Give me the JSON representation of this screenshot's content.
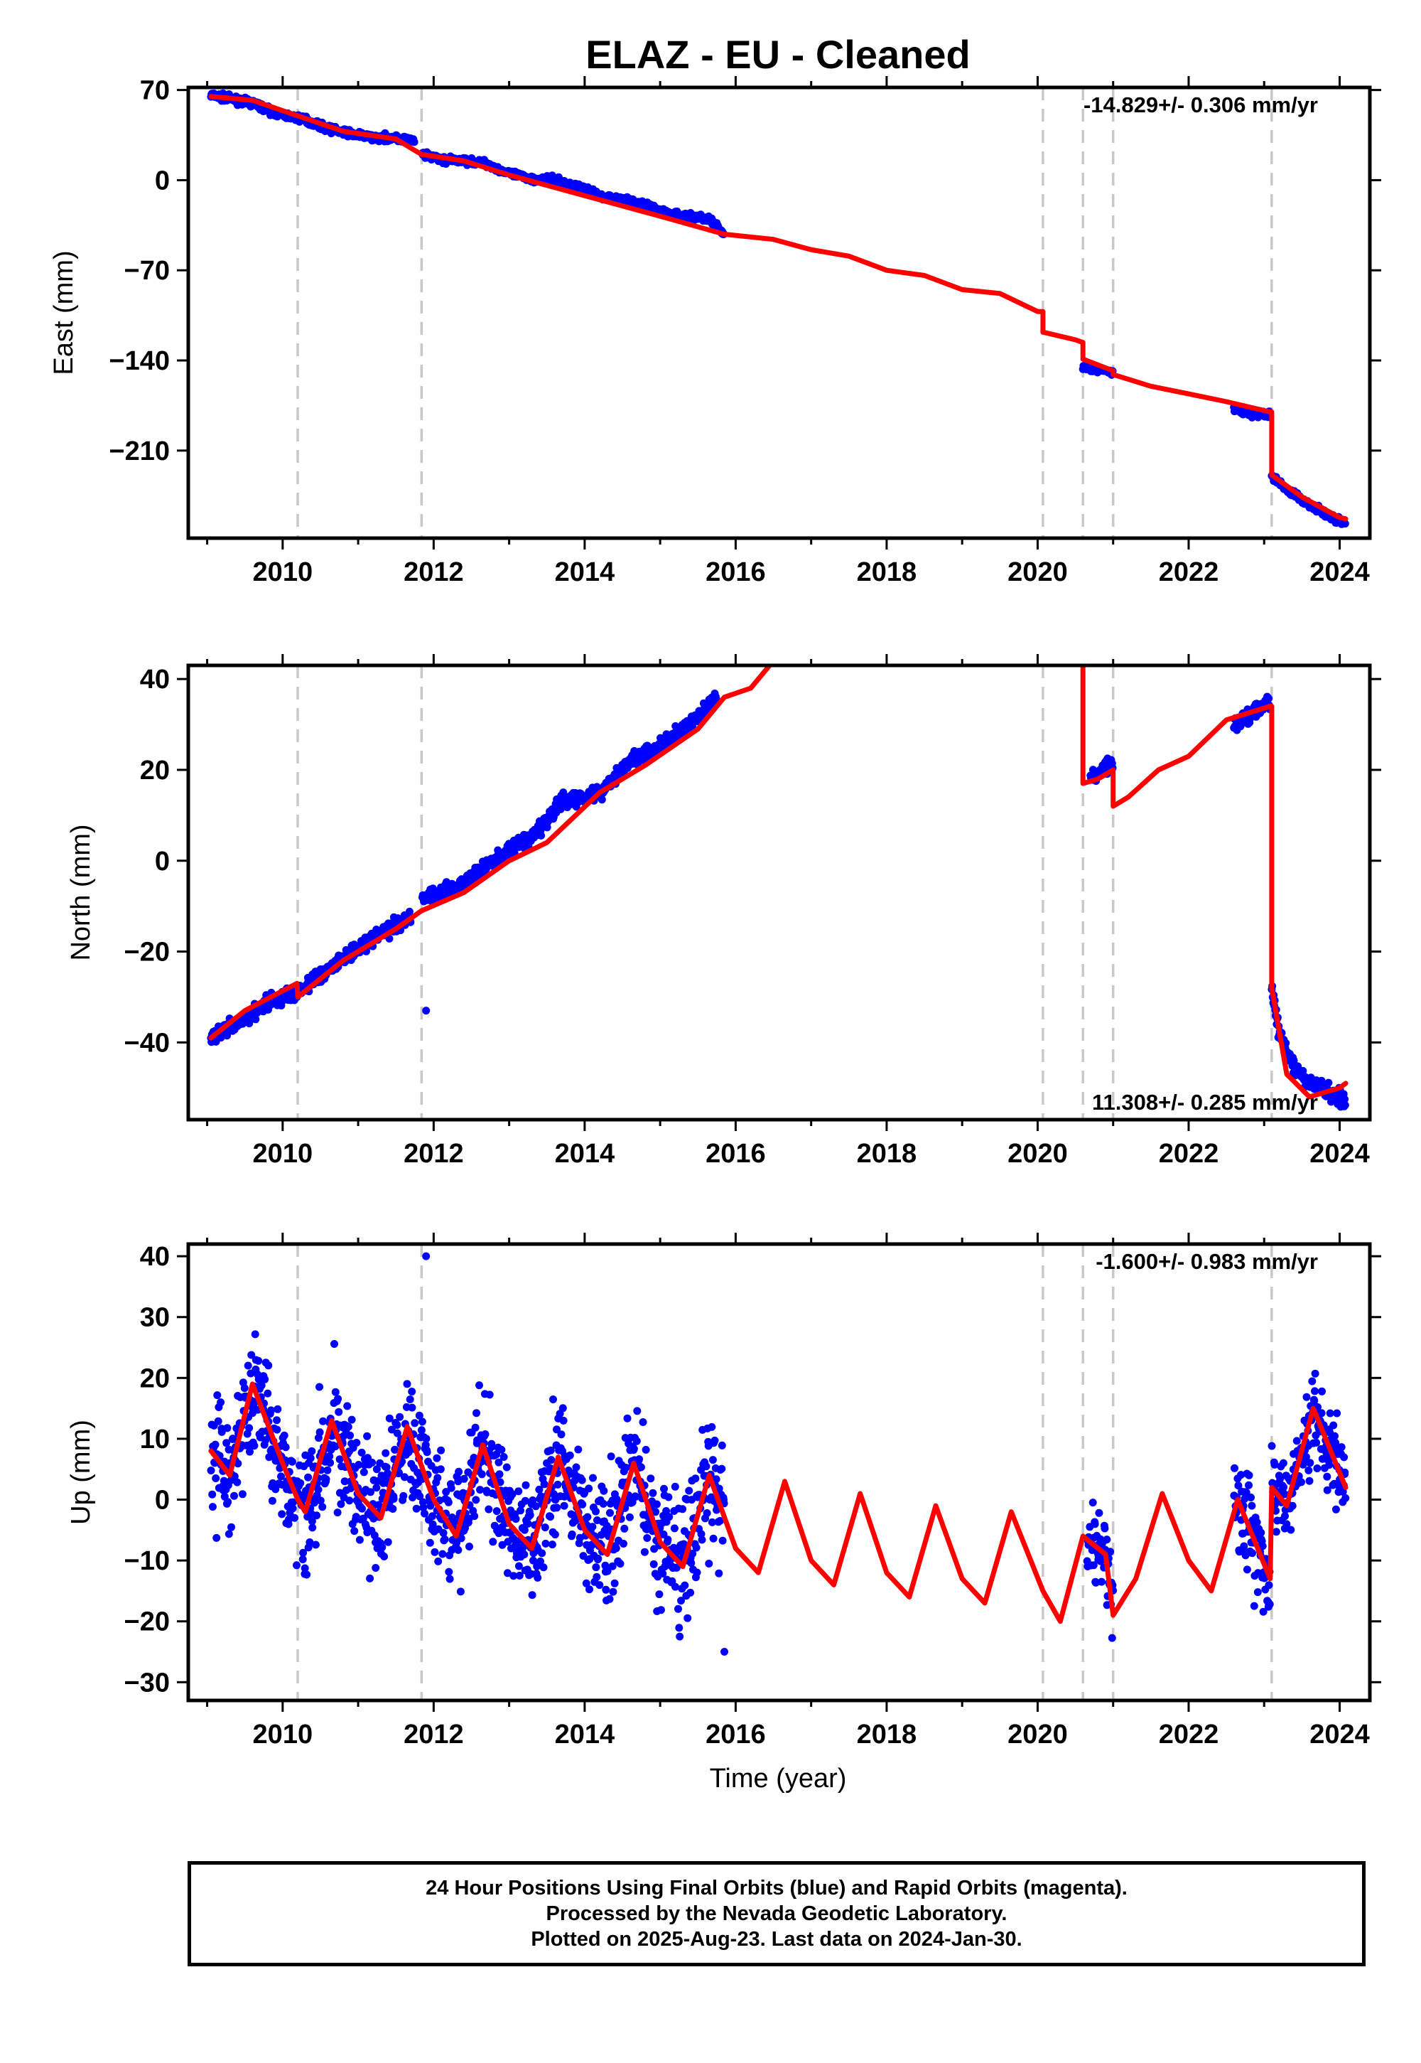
{
  "title": "ELAZ  - EU - Cleaned",
  "colors": {
    "data": "#0000ff",
    "model": "#ff0000",
    "step": "#c8c8c8"
  },
  "chart_data": [
    {
      "type": "scatter",
      "ylabel": "East (mm)",
      "xlabel": "",
      "rate": "-14.829+/- 0.306 mm/yr",
      "xlim": [
        2008.75,
        2024.4
      ],
      "ylim": [
        -278,
        72
      ],
      "xticks": [
        "2010",
        "2012",
        "2014",
        "2016",
        "2018",
        "2020",
        "2022",
        "2024"
      ],
      "yticks": [
        "70",
        "0",
        "-70",
        "-140",
        "-210"
      ],
      "step_epochs": [
        2010.2,
        2011.84,
        2020.07,
        2020.6,
        2021.0,
        2023.1
      ],
      "data_segments": [
        {
          "x": [
            2009.05,
            2009.3,
            2009.6,
            2009.9,
            2010.3,
            2010.6,
            2010.9,
            2011.2,
            2011.5,
            2011.75
          ],
          "y": [
            66,
            63,
            60,
            52,
            47,
            40,
            36,
            33,
            33,
            30
          ]
        },
        {
          "x": [
            2011.85,
            2012.1,
            2012.4,
            2012.7,
            2013.0,
            2013.3,
            2013.6,
            2013.9,
            2014.2,
            2014.5,
            2014.8,
            2015.1,
            2015.4,
            2015.65,
            2015.85
          ],
          "y": [
            20,
            16,
            15,
            13,
            5,
            1,
            0,
            -5,
            -12,
            -15,
            -19,
            -26,
            -28,
            -30,
            -42
          ]
        },
        {
          "x": [
            2020.6,
            2020.8,
            2021.0
          ],
          "y": [
            -145,
            -147,
            -150
          ]
        },
        {
          "x": [
            2022.6,
            2022.85,
            2023.08
          ],
          "y": [
            -178,
            -182,
            -182
          ]
        },
        {
          "x": [
            2023.1,
            2023.3,
            2023.6,
            2023.9,
            2024.0,
            2024.08
          ],
          "y": [
            -230,
            -240,
            -252,
            -262,
            -264,
            -267
          ]
        }
      ],
      "model": {
        "x": [
          2009.05,
          2009.6,
          2010.2,
          2010.8,
          2011.5,
          2011.84,
          2012.4,
          2013.0,
          2014.0,
          2015.0,
          2015.85,
          2016.5,
          2017.0,
          2017.5,
          2018.0,
          2018.5,
          2019.0,
          2019.5,
          2020.0,
          2020.07,
          2020.07,
          2020.5,
          2020.6,
          2020.6,
          2021.0,
          2021.0,
          2021.5,
          2022.0,
          2022.5,
          2023.08,
          2023.1,
          2023.1,
          2023.5,
          2024.0,
          2024.08
        ],
        "y": [
          65,
          62,
          50,
          38,
          32,
          20,
          15,
          4,
          -12,
          -28,
          -42,
          -46,
          -54,
          -59,
          -70,
          -74,
          -85,
          -88,
          -102,
          -102,
          -118,
          -124,
          -126,
          -139,
          -148,
          -151,
          -160,
          -166,
          -172,
          -180,
          -180,
          -229,
          -246,
          -262,
          -263
        ]
      }
    },
    {
      "type": "scatter",
      "ylabel": "North (mm)",
      "xlabel": "",
      "rate": "11.308+/- 0.285 mm/yr",
      "xlim": [
        2008.75,
        2024.4
      ],
      "ylim": [
        -57,
        43
      ],
      "xticks": [
        "2010",
        "2012",
        "2014",
        "2016",
        "2018",
        "2020",
        "2022",
        "2024"
      ],
      "yticks": [
        "40",
        "20",
        "0",
        "-20",
        "-40"
      ],
      "step_epochs": [
        2010.2,
        2011.84,
        2020.07,
        2020.6,
        2021.0,
        2023.1
      ],
      "data_segments": [
        {
          "x": [
            2009.05,
            2009.4,
            2009.8,
            2010.2,
            2010.6,
            2011.0,
            2011.4,
            2011.7
          ],
          "y": [
            -39,
            -36,
            -31,
            -29,
            -24,
            -19,
            -15,
            -12
          ]
        },
        {
          "x": [
            2011.85,
            2012.3,
            2012.8,
            2013.3,
            2013.7,
            2014.2,
            2014.6,
            2015.0,
            2015.4,
            2015.75
          ],
          "y": [
            -8,
            -6,
            0,
            5,
            13,
            15,
            22,
            25,
            30,
            36
          ]
        },
        {
          "x": [
            2020.7,
            2020.85,
            2021.0
          ],
          "y": [
            18,
            20,
            22
          ]
        },
        {
          "x": [
            2022.6,
            2022.8,
            2023.08
          ],
          "y": [
            30,
            32,
            35
          ]
        },
        {
          "x": [
            2023.1,
            2023.2,
            2023.35,
            2023.5,
            2024.0,
            2024.08
          ],
          "y": [
            -28,
            -38,
            -44,
            -48,
            -52,
            -53
          ]
        }
      ],
      "outliers": {
        "x": [
          2011.9
        ],
        "y": [
          -33
        ]
      },
      "model": {
        "x": [
          2009.05,
          2009.5,
          2010.19,
          2010.2,
          2010.8,
          2011.5,
          2011.84,
          2012.4,
          2013.0,
          2013.5,
          2014.2,
          2014.8,
          2015.5,
          2015.85,
          2016.2,
          2016.5,
          2020.6,
          2020.6,
          2020.8,
          2021.0,
          2021.0,
          2021.2,
          2021.6,
          2022.0,
          2022.5,
          2023.08,
          2023.1,
          2023.1,
          2023.3,
          2023.6,
          2024.0,
          2024.08
        ],
        "y": [
          -39,
          -33,
          -27,
          -30,
          -22,
          -15,
          -11,
          -7,
          0,
          4,
          15,
          21,
          29,
          36,
          38,
          44,
          44,
          17,
          18,
          20,
          12,
          14,
          20,
          23,
          31,
          34,
          34,
          -28,
          -47,
          -52,
          -50,
          -49
        ]
      }
    },
    {
      "type": "scatter",
      "ylabel": "Up (mm)",
      "xlabel": "Time (year)",
      "rate": "-1.600+/- 0.983 mm/yr",
      "xlim": [
        2008.75,
        2024.4
      ],
      "ylim": [
        -33,
        42
      ],
      "xticks": [
        "2010",
        "2012",
        "2014",
        "2016",
        "2018",
        "2020",
        "2022",
        "2024"
      ],
      "yticks": [
        "40",
        "30",
        "20",
        "10",
        "0",
        "-10",
        "-20",
        "-30"
      ],
      "step_epochs": [
        2010.2,
        2011.84,
        2020.07,
        2020.6,
        2021.0,
        2023.1
      ],
      "seasonal_fit": {
        "start": 2009.05,
        "end": 2024.08,
        "mean": 4.0,
        "slope": -1.6,
        "amp": 9.0,
        "peak_phase": 0.62
      },
      "data_segments": [
        {
          "x": [
            2009.05,
            2015.85
          ],
          "spread": 7
        },
        {
          "x": [
            2020.65,
            2021.0
          ],
          "spread": 4
        },
        {
          "x": [
            2022.6,
            2023.08
          ],
          "spread": 6
        },
        {
          "x": [
            2023.1,
            2024.08
          ],
          "spread": 5
        }
      ],
      "outliers": {
        "x": [
          2011.9,
          2015.85
        ],
        "y": [
          40,
          -25
        ]
      },
      "model": {
        "x": [
          2009.05,
          2009.3,
          2009.6,
          2010.0,
          2010.2,
          2010.3,
          2010.65,
          2011.0,
          2011.3,
          2011.65,
          2012.0,
          2012.3,
          2012.65,
          2013.0,
          2013.3,
          2013.65,
          2014.0,
          2014.3,
          2014.65,
          2015.0,
          2015.3,
          2015.65,
          2016.0,
          2016.3,
          2016.65,
          2017.0,
          2017.3,
          2017.65,
          2018.0,
          2018.3,
          2018.65,
          2019.0,
          2019.3,
          2019.65,
          2020.07,
          2020.3,
          2020.6,
          2020.9,
          2021.0,
          2021.3,
          2021.65,
          2022.0,
          2022.3,
          2022.65,
          2023.08,
          2023.1,
          2023.3,
          2023.65,
          2024.08
        ],
        "y": [
          8,
          4,
          19,
          6,
          0,
          -2,
          13,
          1,
          -3,
          12,
          0,
          -6,
          9,
          -4,
          -8,
          7,
          -5,
          -9,
          6,
          -7,
          -11,
          4,
          -8,
          -12,
          3,
          -10,
          -14,
          1,
          -12,
          -16,
          -1,
          -13,
          -17,
          -2,
          -15,
          -20,
          -6,
          -9,
          -19,
          -13,
          1,
          -10,
          -15,
          0,
          -13,
          2,
          -1,
          15,
          2
        ]
      }
    }
  ],
  "footer": {
    "line1": "24 Hour Positions Using Final Orbits (blue) and Rapid Orbits (magenta).",
    "line2": "Processed by the Nevada Geodetic Laboratory.",
    "line3": "Plotted on 2025-Aug-23. Last data on 2024-Jan-30."
  }
}
